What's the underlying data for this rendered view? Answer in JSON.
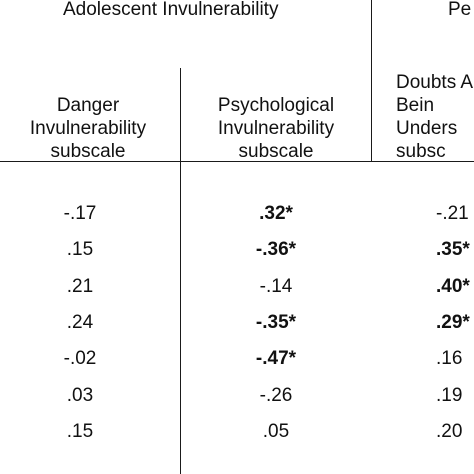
{
  "group_headers": {
    "left": "Adolescent Invulnerability",
    "right_partial": "Pe"
  },
  "columns": {
    "danger": "Danger\nInvulnerability\nsubscale",
    "psychological": "Psychological\nInvulnerability\nsubscale",
    "partial": "Doubts A\nBein\nUnders\nsubsc"
  },
  "rows": [
    {
      "danger": "-.17",
      "psych": ".32*",
      "psych_bold": true,
      "partial": "-.21",
      "partial_bold": false
    },
    {
      "danger": ".15",
      "psych": "-.36*",
      "psych_bold": true,
      "partial": ".35*",
      "partial_bold": true
    },
    {
      "danger": ".21",
      "psych": "-.14",
      "psych_bold": false,
      "partial": ".40*",
      "partial_bold": true
    },
    {
      "danger": ".24",
      "psych": "-.35*",
      "psych_bold": true,
      "partial": ".29*",
      "partial_bold": true
    },
    {
      "danger": "-.02",
      "psych": "-.47*",
      "psych_bold": true,
      "partial": ".16",
      "partial_bold": false
    },
    {
      "danger": ".03",
      "psych": "-.26",
      "psych_bold": false,
      "partial": ".19",
      "partial_bold": false
    },
    {
      "danger": ".15",
      "psych": ".05",
      "psych_bold": false,
      "partial": ".20",
      "partial_bold": false
    }
  ]
}
